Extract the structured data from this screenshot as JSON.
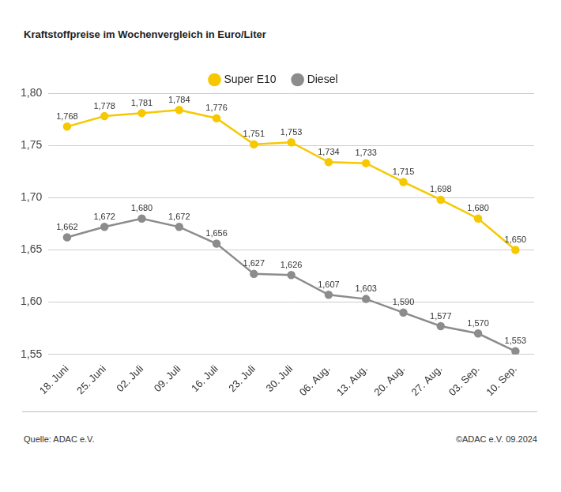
{
  "chart_data": {
    "type": "line",
    "title": "Kraftstoffpreise im Wochenvergleich in Euro/Liter",
    "source": "Quelle: ADAC e.V.",
    "credit": "©ADAC e.V. 09.2024",
    "categories": [
      "18. Juni",
      "25. Juni",
      "02. Juli",
      "09. Juli",
      "16. Juli",
      "23. Juli",
      "30. Juli",
      "06. Aug.",
      "13. Aug.",
      "20. Aug.",
      "27. Aug.",
      "03. Sep.",
      "10. Sep."
    ],
    "series": [
      {
        "name": "Super E10",
        "color": "#f7c800",
        "values": [
          1.768,
          1.778,
          1.781,
          1.784,
          1.776,
          1.751,
          1.753,
          1.734,
          1.733,
          1.715,
          1.698,
          1.68,
          1.65
        ],
        "value_labels": [
          "1,768",
          "1,778",
          "1,781",
          "1,784",
          "1,776",
          "1,751",
          "1,753",
          "1,734",
          "1,733",
          "1,715",
          "1,698",
          "1,680",
          "1,650"
        ]
      },
      {
        "name": "Diesel",
        "color": "#8c8c8c",
        "values": [
          1.662,
          1.672,
          1.68,
          1.672,
          1.656,
          1.627,
          1.626,
          1.607,
          1.603,
          1.59,
          1.577,
          1.57,
          1.553
        ],
        "value_labels": [
          "1,662",
          "1,672",
          "1,680",
          "1,672",
          "1,656",
          "1,627",
          "1,626",
          "1,607",
          "1,603",
          "1,590",
          "1,577",
          "1,570",
          "1,553"
        ]
      }
    ],
    "ylim": [
      1.55,
      1.8
    ],
    "yticks": [
      {
        "value": 1.55,
        "label": "1,55"
      },
      {
        "value": 1.6,
        "label": "1,60"
      },
      {
        "value": 1.65,
        "label": "1,65"
      },
      {
        "value": 1.7,
        "label": "1,70"
      },
      {
        "value": 1.75,
        "label": "1,75"
      },
      {
        "value": 1.8,
        "label": "1,80"
      }
    ],
    "grid": true,
    "legend": "top",
    "marker": "circle",
    "line_style": "solid",
    "data_labels": true
  }
}
